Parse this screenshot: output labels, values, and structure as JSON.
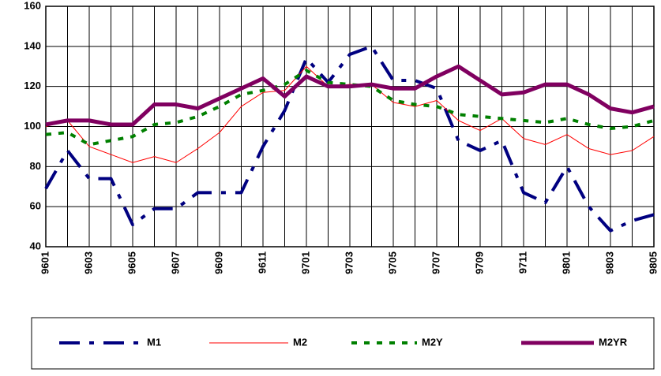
{
  "chart_data": {
    "type": "line",
    "categories": [
      "9601",
      null,
      "9603",
      null,
      "9605",
      null,
      "9607",
      null,
      "9609",
      null,
      "9611",
      null,
      "9701",
      null,
      "9703",
      null,
      "9705",
      null,
      "9707",
      null,
      "9709",
      null,
      "9711",
      null,
      "9801",
      null,
      "9803",
      null,
      "9805"
    ],
    "series": [
      {
        "name": "M1",
        "color": "#000080",
        "style": "dashed",
        "values": [
          69,
          88,
          74,
          74,
          51,
          59,
          59,
          67,
          67,
          67,
          90,
          108,
          134,
          122,
          136,
          140,
          123,
          123,
          119,
          93,
          88,
          93,
          67,
          62,
          80,
          60,
          48,
          53,
          56
        ]
      },
      {
        "name": "M2",
        "color": "#ff0000",
        "style": "solid",
        "values": [
          100,
          103,
          90,
          86,
          82,
          85,
          82,
          89,
          97,
          110,
          117,
          118,
          130,
          120,
          121,
          121,
          112,
          110,
          113,
          103,
          98,
          104,
          94,
          91,
          96,
          89,
          86,
          88,
          95
        ]
      },
      {
        "name": "M2Y",
        "color": "#008000",
        "style": "dotted",
        "values": [
          96,
          97,
          91,
          93,
          95,
          101,
          102,
          105,
          110,
          116,
          118,
          121,
          128,
          122,
          121,
          120,
          113,
          111,
          110,
          106,
          105,
          104,
          103,
          102,
          104,
          101,
          99,
          100,
          103
        ]
      },
      {
        "name": "M2YR",
        "color": "#800060",
        "style": "thick",
        "values": [
          101,
          103,
          103,
          101,
          101,
          111,
          111,
          109,
          114,
          119,
          124,
          115,
          125,
          120,
          120,
          121,
          119,
          119,
          125,
          130,
          123,
          116,
          117,
          121,
          121,
          116,
          109,
          107,
          110
        ]
      }
    ],
    "ylim": [
      40,
      160
    ],
    "yticks": [
      40,
      60,
      80,
      100,
      120,
      140,
      160
    ],
    "grid": true,
    "legend": "bottom"
  }
}
